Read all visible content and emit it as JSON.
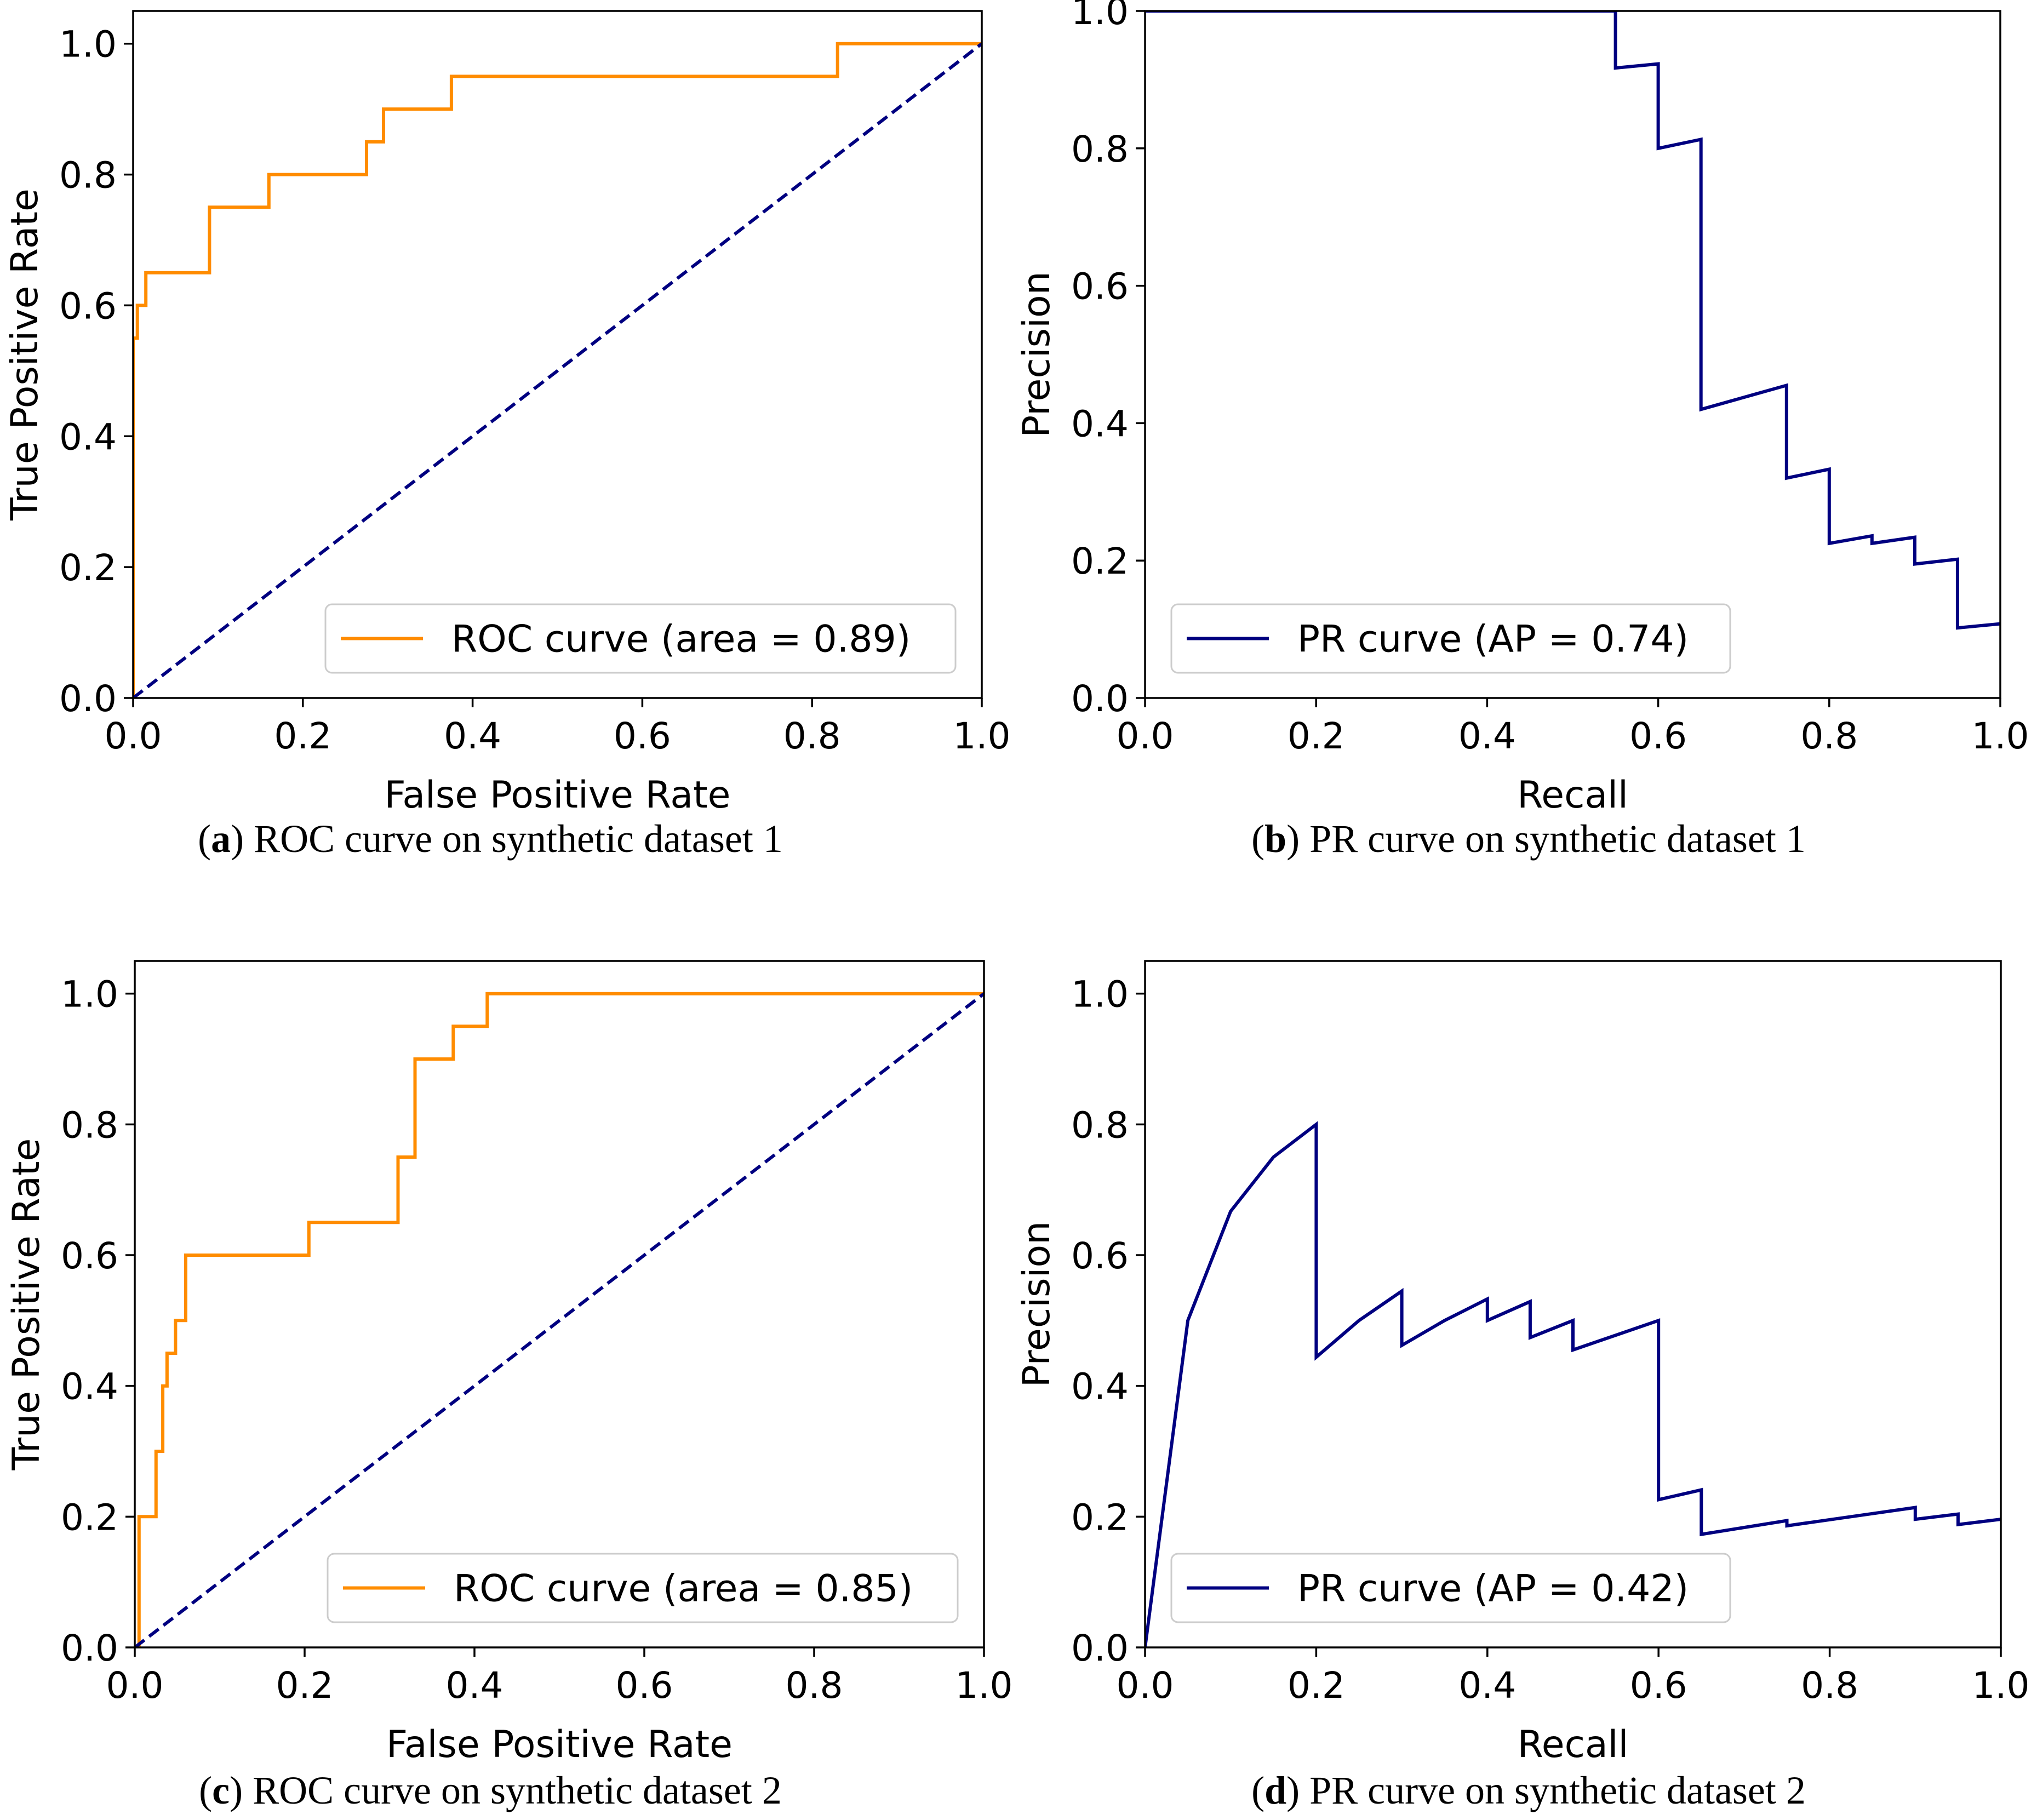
{
  "figure": {
    "captions": [
      {
        "letter": "a",
        "text": " ROC curve on synthetic dataset 1"
      },
      {
        "letter": "b",
        "text": " PR curve on synthetic dataset 1"
      },
      {
        "letter": "c",
        "text": " ROC curve on synthetic dataset 2"
      },
      {
        "letter": "d",
        "text": " PR curve on synthetic dataset 2"
      }
    ]
  },
  "colors": {
    "roc_line": "#ff8c00",
    "pr_line": "#000080",
    "diagonal": "#000080",
    "legend_border": "#cccccc",
    "axis": "#000000"
  },
  "chart_data": [
    {
      "id": "a",
      "type": "line",
      "title": "",
      "xlabel": "False Positive Rate",
      "ylabel": "True Positive Rate",
      "xlim": [
        0.0,
        1.0
      ],
      "ylim": [
        0.0,
        1.05
      ],
      "xticks": [
        "0.0",
        "0.2",
        "0.4",
        "0.6",
        "0.8",
        "1.0"
      ],
      "yticks": [
        "0.0",
        "0.2",
        "0.4",
        "0.6",
        "0.8",
        "1.0"
      ],
      "legend_loc": "lower-right",
      "series": [
        {
          "name": "ROC curve (area = 0.89)",
          "color": "#ff8c00",
          "style": "solid",
          "points": [
            [
              0,
              0
            ],
            [
              0,
              0.55
            ],
            [
              0.005,
              0.55
            ],
            [
              0.005,
              0.6
            ],
            [
              0.015,
              0.6
            ],
            [
              0.015,
              0.65
            ],
            [
              0.09,
              0.65
            ],
            [
              0.09,
              0.75
            ],
            [
              0.16,
              0.75
            ],
            [
              0.16,
              0.8
            ],
            [
              0.275,
              0.8
            ],
            [
              0.275,
              0.85
            ],
            [
              0.295,
              0.85
            ],
            [
              0.295,
              0.9
            ],
            [
              0.375,
              0.9
            ],
            [
              0.375,
              0.95
            ],
            [
              0.83,
              0.95
            ],
            [
              0.83,
              1.0
            ],
            [
              1.0,
              1.0
            ]
          ]
        },
        {
          "name": "diagonal",
          "color": "#000080",
          "style": "dashed",
          "points": [
            [
              0,
              0
            ],
            [
              1,
              1
            ]
          ]
        }
      ]
    },
    {
      "id": "b",
      "type": "line",
      "title": "",
      "xlabel": "Recall",
      "ylabel": "Precision",
      "xlim": [
        0.0,
        1.0
      ],
      "ylim": [
        0.0,
        1.0
      ],
      "xticks": [
        "0.0",
        "0.2",
        "0.4",
        "0.6",
        "0.8",
        "1.0"
      ],
      "yticks": [
        "0.0",
        "0.2",
        "0.4",
        "0.6",
        "0.8",
        "1.0"
      ],
      "legend_loc": "lower-left",
      "series": [
        {
          "name": "PR curve (AP = 0.74)",
          "color": "#000080",
          "style": "solid",
          "points": [
            [
              0,
              1.0
            ],
            [
              0.55,
              1.0
            ],
            [
              0.55,
              0.917
            ],
            [
              0.6,
              0.923
            ],
            [
              0.6,
              0.8
            ],
            [
              0.65,
              0.813
            ],
            [
              0.65,
              0.42
            ],
            [
              0.75,
              0.455
            ],
            [
              0.75,
              0.32
            ],
            [
              0.8,
              0.333
            ],
            [
              0.8,
              0.225
            ],
            [
              0.85,
              0.236
            ],
            [
              0.85,
              0.225
            ],
            [
              0.9,
              0.234
            ],
            [
              0.9,
              0.195
            ],
            [
              0.95,
              0.202
            ],
            [
              0.95,
              0.102
            ],
            [
              1.0,
              0.108
            ]
          ]
        }
      ]
    },
    {
      "id": "c",
      "type": "line",
      "title": "",
      "xlabel": "False Positive Rate",
      "ylabel": "True Positive Rate",
      "xlim": [
        0.0,
        1.0
      ],
      "ylim": [
        0.0,
        1.05
      ],
      "xticks": [
        "0.0",
        "0.2",
        "0.4",
        "0.6",
        "0.8",
        "1.0"
      ],
      "yticks": [
        "0.0",
        "0.2",
        "0.4",
        "0.6",
        "0.8",
        "1.0"
      ],
      "legend_loc": "lower-right",
      "series": [
        {
          "name": "ROC curve (area = 0.85)",
          "color": "#ff8c00",
          "style": "solid",
          "points": [
            [
              0,
              0
            ],
            [
              0.005,
              0
            ],
            [
              0.005,
              0.2
            ],
            [
              0.025,
              0.2
            ],
            [
              0.025,
              0.3
            ],
            [
              0.033,
              0.3
            ],
            [
              0.033,
              0.4
            ],
            [
              0.038,
              0.4
            ],
            [
              0.038,
              0.45
            ],
            [
              0.048,
              0.45
            ],
            [
              0.048,
              0.5
            ],
            [
              0.06,
              0.5
            ],
            [
              0.06,
              0.6
            ],
            [
              0.205,
              0.6
            ],
            [
              0.205,
              0.65
            ],
            [
              0.31,
              0.65
            ],
            [
              0.31,
              0.75
            ],
            [
              0.33,
              0.75
            ],
            [
              0.33,
              0.9
            ],
            [
              0.375,
              0.9
            ],
            [
              0.375,
              0.95
            ],
            [
              0.415,
              0.95
            ],
            [
              0.415,
              1.0
            ],
            [
              1.0,
              1.0
            ]
          ]
        },
        {
          "name": "diagonal",
          "color": "#000080",
          "style": "dashed",
          "points": [
            [
              0,
              0
            ],
            [
              1,
              1
            ]
          ]
        }
      ]
    },
    {
      "id": "d",
      "type": "line",
      "title": "",
      "xlabel": "Recall",
      "ylabel": "Precision",
      "xlim": [
        0.0,
        1.0
      ],
      "ylim": [
        0.0,
        1.05
      ],
      "xticks": [
        "0.0",
        "0.2",
        "0.4",
        "0.6",
        "0.8",
        "1.0"
      ],
      "yticks": [
        "0.0",
        "0.2",
        "0.4",
        "0.6",
        "0.8",
        "1.0"
      ],
      "legend_loc": "lower-left",
      "series": [
        {
          "name": "PR curve (AP = 0.42)",
          "color": "#000080",
          "style": "solid",
          "points": [
            [
              0,
              0
            ],
            [
              0.05,
              0.5
            ],
            [
              0.1,
              0.667
            ],
            [
              0.15,
              0.75
            ],
            [
              0.2,
              0.8
            ],
            [
              0.2,
              0.444
            ],
            [
              0.25,
              0.5
            ],
            [
              0.3,
              0.545
            ],
            [
              0.3,
              0.462
            ],
            [
              0.35,
              0.5
            ],
            [
              0.4,
              0.533
            ],
            [
              0.4,
              0.5
            ],
            [
              0.45,
              0.529
            ],
            [
              0.45,
              0.474
            ],
            [
              0.5,
              0.5
            ],
            [
              0.5,
              0.455
            ],
            [
              0.6,
              0.5
            ],
            [
              0.6,
              0.226
            ],
            [
              0.65,
              0.241
            ],
            [
              0.65,
              0.173
            ],
            [
              0.75,
              0.194
            ],
            [
              0.75,
              0.186
            ],
            [
              0.9,
              0.214
            ],
            [
              0.9,
              0.196
            ],
            [
              0.95,
              0.204
            ],
            [
              0.95,
              0.188
            ],
            [
              1.0,
              0.196
            ]
          ]
        }
      ]
    }
  ]
}
